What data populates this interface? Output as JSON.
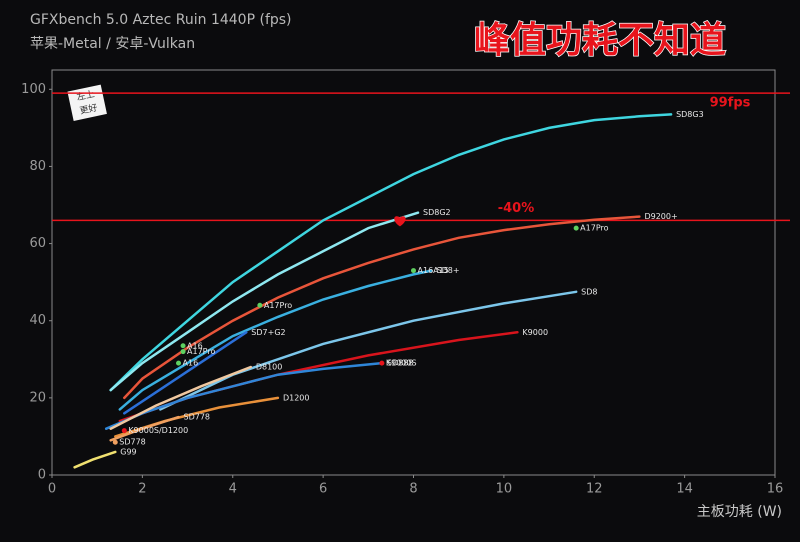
{
  "chart_data": {
    "type": "line",
    "title": "GFXbench 5.0 Aztec Ruin 1440P (fps)",
    "subtitle": "苹果-Metal / 安卓-Vulkan",
    "headline": "峰值功耗不知道",
    "x_label": "主板功耗 (W)",
    "badge": [
      "左上",
      "更好"
    ],
    "xlim": [
      0,
      16
    ],
    "xticks": [
      0,
      2,
      4,
      6,
      8,
      10,
      12,
      14,
      16
    ],
    "ylim": [
      0,
      105
    ],
    "yticks": [
      0,
      20,
      40,
      60,
      80,
      100
    ],
    "grid": false,
    "reference_lines": [
      {
        "value": 99,
        "label": "99fps",
        "color": "#e8141c"
      },
      {
        "value": 66,
        "label": "-40%",
        "color": "#e8141c"
      }
    ],
    "highlight": {
      "x": 7.7,
      "y": 66,
      "color": "#e8141c"
    },
    "series": [
      {
        "name": "SD8G3",
        "color": "#3fd6e0",
        "x": [
          1.3,
          2,
          3,
          4,
          5,
          6,
          7,
          8,
          9,
          10,
          11,
          12,
          13,
          13.7
        ],
        "values": [
          22,
          30,
          40,
          50,
          58,
          66,
          72,
          78,
          83,
          87,
          90,
          92,
          93,
          93.5
        ]
      },
      {
        "name": "SD8G2",
        "color": "#8ee8f0",
        "x": [
          1.3,
          2,
          3,
          4,
          5,
          6,
          7,
          8.1
        ],
        "values": [
          22,
          29,
          37,
          45,
          52,
          58,
          64,
          68
        ]
      },
      {
        "name": "D9200+",
        "color": "#e8553a",
        "x": [
          1.6,
          2,
          3,
          4,
          5,
          6,
          7,
          8,
          9,
          10,
          11,
          12,
          13
        ],
        "values": [
          20,
          25,
          33,
          40,
          46,
          51,
          55,
          58.5,
          61.5,
          63.5,
          65,
          66.2,
          67
        ]
      },
      {
        "name": "SD8+",
        "color": "#3ab0e0",
        "x": [
          1.5,
          2,
          3,
          4,
          5,
          6,
          7,
          8,
          8.4
        ],
        "values": [
          17,
          22,
          29,
          36,
          41,
          45.5,
          49,
          52,
          53
        ]
      },
      {
        "name": "SD8",
        "color": "#7cc6ea",
        "x": [
          2.4,
          4,
          6,
          8,
          10,
          11.6
        ],
        "values": [
          17,
          26,
          34,
          40,
          44.5,
          47.5
        ]
      },
      {
        "name": "K9000",
        "color": "#d8141c",
        "x": [
          1.5,
          3,
          5,
          7,
          9,
          10.3
        ],
        "values": [
          14,
          20,
          26,
          31,
          35,
          37
        ]
      },
      {
        "name": "SD888",
        "color": "#2f86d8",
        "x": [
          1.2,
          2,
          3,
          4,
          5,
          6,
          7.3
        ],
        "values": [
          12,
          16,
          20,
          23,
          26,
          27.5,
          29
        ]
      },
      {
        "name": "SD7+G2",
        "color": "#2b6fd8",
        "x": [
          1.6,
          2.5,
          3.4,
          4.3
        ],
        "values": [
          16,
          23,
          30,
          37
        ]
      },
      {
        "name": "D8100",
        "color": "#f0c8a0",
        "x": [
          1.3,
          2.3,
          3.3,
          4.4
        ],
        "values": [
          12,
          18,
          23,
          28
        ]
      },
      {
        "name": "D1200",
        "color": "#e8903a",
        "x": [
          1.4,
          2.5,
          3.7,
          5
        ],
        "values": [
          10,
          14,
          17.5,
          20
        ]
      },
      {
        "name": "SD778",
        "color": "#f0a060",
        "x": [
          1.3,
          2,
          2.8
        ],
        "values": [
          9,
          12,
          15
        ]
      },
      {
        "name": "G99",
        "color": "#f0e070",
        "x": [
          0.5,
          0.9,
          1.4
        ],
        "values": [
          2,
          4,
          6
        ]
      }
    ],
    "points": [
      {
        "name": "A17Pro",
        "x": 4.6,
        "y": 44,
        "color": "#5fd060"
      },
      {
        "name": "A16",
        "x": 2.8,
        "y": 29,
        "color": "#5fd060"
      },
      {
        "name": "A16",
        "x": 2.9,
        "y": 33.5,
        "color": "#5fd060"
      },
      {
        "name": "A17Pro",
        "x": 2.9,
        "y": 32,
        "color": "#5fd060"
      },
      {
        "name": "A17Pro",
        "x": 11.6,
        "y": 64,
        "color": "#5fd060"
      },
      {
        "name": "A16A15",
        "x": 8.0,
        "y": 53,
        "color": "#5fd060"
      },
      {
        "name": "K9000S",
        "x": 7.3,
        "y": 29,
        "color": "#e8141c"
      },
      {
        "name": "K9000S/D1200",
        "x": 1.6,
        "y": 11.5,
        "color": "#e8141c"
      },
      {
        "name": "SD778",
        "x": 1.4,
        "y": 8.5,
        "color": "#f0a060"
      }
    ]
  }
}
